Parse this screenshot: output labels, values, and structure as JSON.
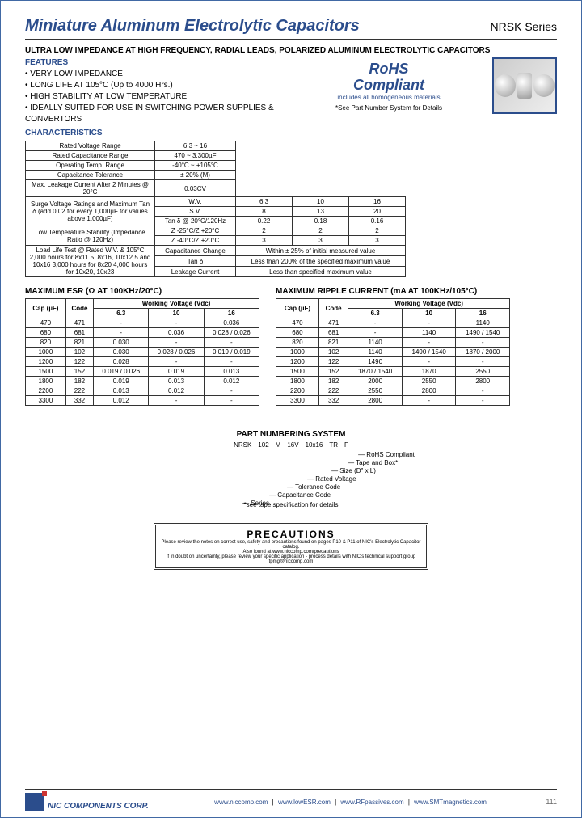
{
  "header": {
    "title": "Miniature Aluminum Electrolytic Capacitors",
    "series": "NRSK Series"
  },
  "subtitle": "ULTRA LOW IMPEDANCE AT HIGH FREQUENCY, RADIAL LEADS, POLARIZED ALUMINUM ELECTROLYTIC CAPACITORS",
  "rohs": {
    "line1": "RoHS",
    "line2": "Compliant",
    "sub": "includes all homogeneous materials",
    "note": "*See Part Number System for Details"
  },
  "features_header": "FEATURES",
  "features": [
    "• VERY LOW IMPEDANCE",
    "• LONG LIFE AT 105°C (Up to 4000 Hrs.)",
    "• HIGH STABILITY AT LOW TEMPERATURE",
    "• IDEALLY SUITED FOR USE IN SWITCHING POWER SUPPLIES & CONVERTORS"
  ],
  "characteristics_header": "CHARACTERISTICS",
  "char_rows": [
    {
      "label": "Rated Voltage Range",
      "v": "6.3 ~ 16"
    },
    {
      "label": "Rated Capacitance Range",
      "v": "470 ~ 3,300µF"
    },
    {
      "label": "Operating Temp. Range",
      "v": "-40°C ~ +105°C"
    },
    {
      "label": "Capacitance Tolerance",
      "v": "± 20% (M)"
    },
    {
      "label": "Max. Leakage Current After 2 Minutes @ 20°C",
      "v": "0.03CV"
    }
  ],
  "char_block2": {
    "r1_label": "Surge Voltage Ratings and Maximum Tan δ (add 0.02 for every 1,000µF for values above 1,000µF)",
    "r1_sub": [
      "W.V.",
      "S.V.",
      "Tan δ @ 20°C/120Hz"
    ],
    "r1_vals": [
      [
        "6.3",
        "10",
        "16"
      ],
      [
        "8",
        "13",
        "20"
      ],
      [
        "0.22",
        "0.18",
        "0.16"
      ]
    ],
    "r2_label": "Low Temperature Stability (Impedance Ratio @ 120Hz)",
    "r2_sub": [
      "Z -25°C/Z +20°C",
      "Z -40°C/Z +20°C"
    ],
    "r2_vals": [
      [
        "2",
        "2",
        "2"
      ],
      [
        "3",
        "3",
        "3"
      ]
    ],
    "r3_label": "Load Life Test @ Rated W.V. & 105°C 2,000 hours for 8x11.5, 8x16, 10x12.5 and 10x16 3,000 hours for 8x20 4,000 hours for 10x20, 10x23",
    "r3_rows": [
      {
        "k": "Capacitance Change",
        "v": "Within ± 25% of initial measured value"
      },
      {
        "k": "Tan δ",
        "v": "Less than 200% of the specified maximum value"
      },
      {
        "k": "Leakage Current",
        "v": "Less than specified maximum value"
      }
    ]
  },
  "esr": {
    "title": "MAXIMUM ESR (Ω AT 100KHz/20°C)",
    "col_headers": {
      "cap": "Cap (µF)",
      "code": "Code",
      "wv": "Working Voltage (Vdc)",
      "v1": "6.3",
      "v2": "10",
      "v3": "16"
    },
    "rows": [
      [
        "470",
        "471",
        "-",
        "-",
        "0.036"
      ],
      [
        "680",
        "681",
        "-",
        "0.036",
        "0.028 / 0.026"
      ],
      [
        "820",
        "821",
        "0.030",
        "-",
        "-"
      ],
      [
        "1000",
        "102",
        "0.030",
        "0.028 / 0.026",
        "0.019 / 0.019"
      ],
      [
        "1200",
        "122",
        "0.028",
        "-",
        "-"
      ],
      [
        "1500",
        "152",
        "0.019 / 0.026",
        "0.019",
        "0.013"
      ],
      [
        "1800",
        "182",
        "0.019",
        "0.013",
        "0.012"
      ],
      [
        "2200",
        "222",
        "0.013",
        "0.012",
        "-"
      ],
      [
        "3300",
        "332",
        "0.012",
        "-",
        "-"
      ]
    ]
  },
  "ripple": {
    "title": "MAXIMUM RIPPLE CURRENT (mA AT 100KHz/105°C)",
    "col_headers": {
      "cap": "Cap (µF)",
      "code": "Code",
      "wv": "Working Voltage (Vdc)",
      "v1": "6.3",
      "v2": "10",
      "v3": "16"
    },
    "rows": [
      [
        "470",
        "471",
        "-",
        "-",
        "1140"
      ],
      [
        "680",
        "681",
        "-",
        "1140",
        "1490 / 1540"
      ],
      [
        "820",
        "821",
        "1140",
        "-",
        "-"
      ],
      [
        "1000",
        "102",
        "1140",
        "1490 / 1540",
        "1870 / 2000"
      ],
      [
        "1200",
        "122",
        "1490",
        "-",
        "-"
      ],
      [
        "1500",
        "152",
        "1870 / 1540",
        "1870",
        "2550"
      ],
      [
        "1800",
        "182",
        "2000",
        "2550",
        "2800"
      ],
      [
        "2200",
        "222",
        "2550",
        "2800",
        "-"
      ],
      [
        "3300",
        "332",
        "2800",
        "-",
        "-"
      ]
    ]
  },
  "part_numbering": {
    "title": "PART NUMBERING SYSTEM",
    "parts": [
      "NRSK",
      "102",
      "M",
      "16V",
      "10x16",
      "TR",
      "F"
    ],
    "labels": [
      "Series",
      "Capacitance Code",
      "Tolerance Code",
      "Rated Voltage",
      "Size (D\" x L)",
      "Tape and Box*",
      "RoHS Compliant"
    ],
    "note": "*see tape specification for details"
  },
  "precautions": {
    "title": "PRECAUTIONS",
    "l1": "Please review the notes on correct use, safety and precautions found on pages P10 & P11 of NIC's Electrolytic Capacitor catalog.",
    "l2": "Also found at www.niccomp.com/precautions",
    "l3": "If in doubt on uncertainty, please review your specific application - process details with NIC's technical support group tpmg@niccomp.com"
  },
  "footer": {
    "company": "NIC COMPONENTS CORP.",
    "links": [
      "www.niccomp.com",
      "www.lowESR.com",
      "www.RFpassives.com",
      "www.SMTmagnetics.com"
    ],
    "page": "111"
  }
}
